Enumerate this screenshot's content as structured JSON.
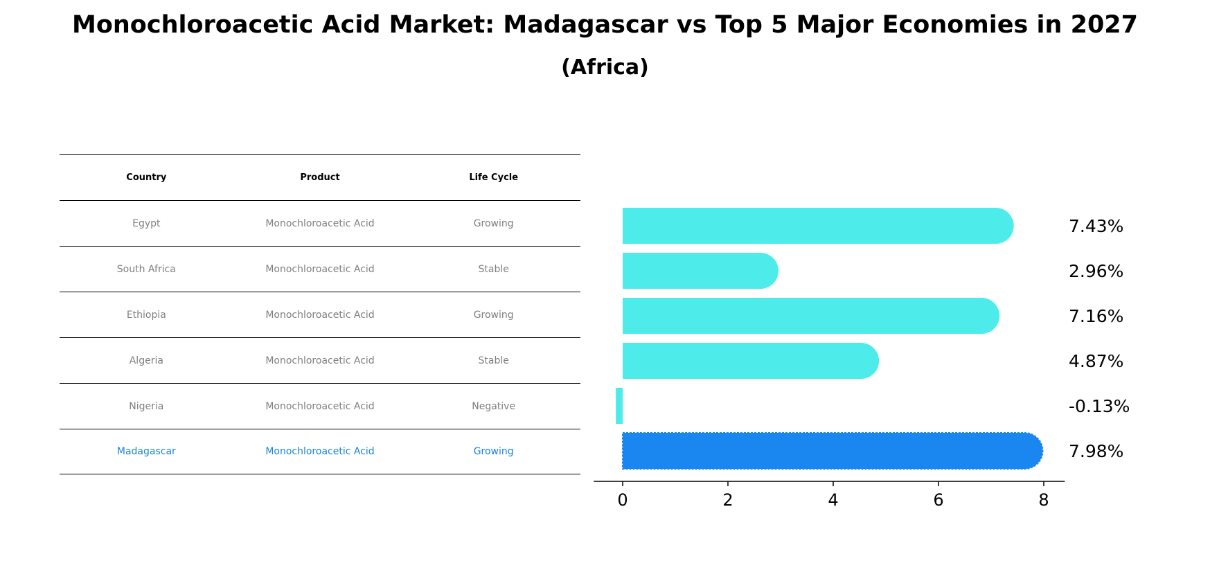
{
  "title": "Monochloroacetic Acid Market: Madagascar vs Top 5 Major Economies in 2027",
  "subtitle": "(Africa)",
  "table": {
    "headers": [
      "Country",
      "Product",
      "Life Cycle"
    ],
    "rows": [
      {
        "country": "Egypt",
        "product": "Monochloroacetic Acid",
        "life_cycle": "Growing"
      },
      {
        "country": "South Africa",
        "product": "Monochloroacetic Acid",
        "life_cycle": "Stable"
      },
      {
        "country": "Ethiopia",
        "product": "Monochloroacetic Acid",
        "life_cycle": "Growing"
      },
      {
        "country": "Algeria",
        "product": "Monochloroacetic Acid",
        "life_cycle": "Stable"
      },
      {
        "country": "Nigeria",
        "product": "Monochloroacetic Acid",
        "life_cycle": "Negative"
      },
      {
        "country": "Madagascar",
        "product": "Monochloroacetic Acid",
        "life_cycle": "Growing"
      }
    ]
  },
  "chart_data": {
    "type": "bar",
    "orientation": "horizontal",
    "categories": [
      "Egypt",
      "South Africa",
      "Ethiopia",
      "Algeria",
      "Nigeria",
      "Madagascar"
    ],
    "values": [
      7.43,
      2.96,
      7.16,
      4.87,
      -0.13,
      7.98
    ],
    "data_labels": [
      "7.43%",
      "2.96%",
      "7.16%",
      "4.87%",
      "-0.13%",
      "7.98%"
    ],
    "highlight": "Madagascar",
    "xticks": [
      0,
      2,
      4,
      6,
      8
    ],
    "xlim": [
      -0.55,
      8.4
    ],
    "colors": {
      "default": "#4deceb",
      "highlight": "#1a86f0"
    }
  }
}
